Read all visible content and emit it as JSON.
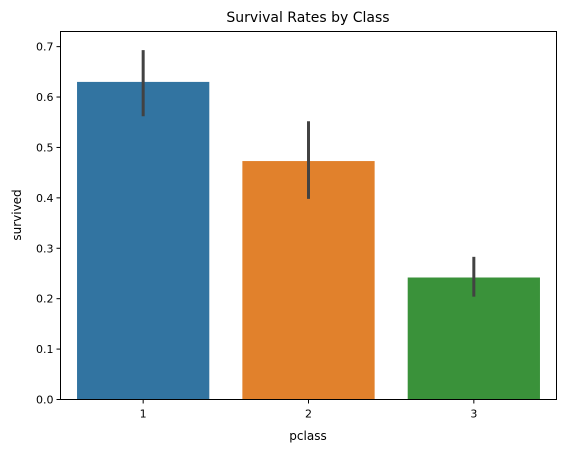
{
  "chart_data": {
    "type": "bar",
    "title": "Survival Rates by Class",
    "xlabel": "pclass",
    "ylabel": "survived",
    "categories": [
      "1",
      "2",
      "3"
    ],
    "values": [
      0.63,
      0.473,
      0.242
    ],
    "error_low": [
      0.562,
      0.398,
      0.204
    ],
    "error_high": [
      0.693,
      0.552,
      0.283
    ],
    "colors": [
      "#3274a1",
      "#e1812c",
      "#3a923a"
    ],
    "error_color": "#424242",
    "ylim": [
      0,
      0.73
    ],
    "yticks": [
      0.0,
      0.1,
      0.2,
      0.3,
      0.4,
      0.5,
      0.6,
      0.7
    ],
    "ytick_labels": [
      "0.0",
      "0.1",
      "0.2",
      "0.3",
      "0.4",
      "0.5",
      "0.6",
      "0.7"
    ],
    "grid": false,
    "legend": false
  }
}
